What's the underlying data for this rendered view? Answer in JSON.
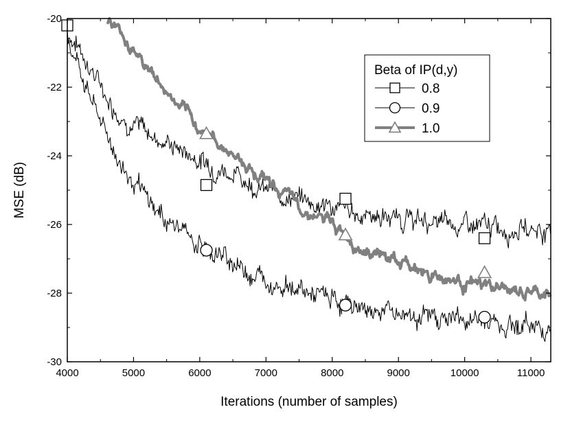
{
  "chart_data": {
    "type": "line",
    "title": "",
    "xlabel": "Iterations (number of samples)",
    "ylabel": "MSE (dB)",
    "xlim": [
      4000,
      11300
    ],
    "ylim": [
      -30,
      -20
    ],
    "x_ticks": [
      4000,
      5000,
      6000,
      7000,
      8000,
      9000,
      10000,
      11000
    ],
    "y_ticks": [
      -30,
      -28,
      -26,
      -24,
      -22,
      -20
    ],
    "grid": false,
    "legend": {
      "title": "Beta of IP(d,y)",
      "placement": "top-right"
    },
    "series": [
      {
        "name": "0.8",
        "color": "#000000",
        "line_style": "thin",
        "marker": "square",
        "points": [
          [
            4000,
            -20.4
          ],
          [
            4200,
            -20.9
          ],
          [
            4400,
            -21.6
          ],
          [
            4600,
            -22.3
          ],
          [
            4800,
            -22.8
          ],
          [
            5000,
            -23.1
          ],
          [
            5200,
            -23.3
          ],
          [
            5400,
            -23.5
          ],
          [
            5600,
            -23.7
          ],
          [
            5800,
            -23.9
          ],
          [
            6000,
            -24.1
          ],
          [
            6200,
            -24.3
          ],
          [
            6400,
            -24.4
          ],
          [
            6600,
            -24.6
          ],
          [
            6800,
            -24.8
          ],
          [
            7000,
            -25.0
          ],
          [
            7200,
            -25.1
          ],
          [
            7400,
            -25.2
          ],
          [
            7600,
            -25.3
          ],
          [
            7800,
            -25.4
          ],
          [
            8000,
            -25.5
          ],
          [
            8200,
            -25.6
          ],
          [
            8400,
            -25.7
          ],
          [
            8600,
            -25.7
          ],
          [
            8800,
            -25.8
          ],
          [
            9000,
            -25.8
          ],
          [
            9200,
            -25.9
          ],
          [
            9400,
            -25.9
          ],
          [
            9600,
            -26.0
          ],
          [
            9800,
            -26.0
          ],
          [
            10000,
            -26.0
          ],
          [
            10200,
            -26.1
          ],
          [
            10400,
            -26.1
          ],
          [
            10600,
            -26.1
          ],
          [
            10800,
            -26.1
          ],
          [
            11000,
            -26.1
          ],
          [
            11300,
            -26.2
          ]
        ],
        "markers": [
          [
            4000,
            -20.2
          ],
          [
            6100,
            -24.85
          ],
          [
            8200,
            -25.25
          ],
          [
            10300,
            -26.4
          ]
        ]
      },
      {
        "name": "0.9",
        "color": "#000000",
        "line_style": "thin",
        "marker": "circle",
        "points": [
          [
            4000,
            -20.5
          ],
          [
            4200,
            -21.5
          ],
          [
            4400,
            -22.5
          ],
          [
            4600,
            -23.4
          ],
          [
            4800,
            -24.2
          ],
          [
            5000,
            -24.8
          ],
          [
            5200,
            -25.3
          ],
          [
            5400,
            -25.7
          ],
          [
            5600,
            -26.0
          ],
          [
            5800,
            -26.3
          ],
          [
            6000,
            -26.6
          ],
          [
            6200,
            -26.8
          ],
          [
            6400,
            -27.0
          ],
          [
            6600,
            -27.2
          ],
          [
            6800,
            -27.4
          ],
          [
            7000,
            -27.6
          ],
          [
            7200,
            -27.7
          ],
          [
            7400,
            -27.8
          ],
          [
            7600,
            -28.0
          ],
          [
            7800,
            -28.1
          ],
          [
            8000,
            -28.2
          ],
          [
            8200,
            -28.3
          ],
          [
            8400,
            -28.4
          ],
          [
            8600,
            -28.5
          ],
          [
            8800,
            -28.5
          ],
          [
            9000,
            -28.6
          ],
          [
            9200,
            -28.6
          ],
          [
            9400,
            -28.7
          ],
          [
            9600,
            -28.7
          ],
          [
            9800,
            -28.7
          ],
          [
            10000,
            -28.8
          ],
          [
            10200,
            -28.8
          ],
          [
            10400,
            -28.8
          ],
          [
            10600,
            -28.9
          ],
          [
            10800,
            -28.9
          ],
          [
            11000,
            -28.9
          ],
          [
            11300,
            -29.0
          ]
        ],
        "markers": [
          [
            6100,
            -26.75
          ],
          [
            8200,
            -28.35
          ],
          [
            10300,
            -28.7
          ]
        ]
      },
      {
        "name": "1.0",
        "color": "#808080",
        "line_style": "thick",
        "marker": "triangle",
        "points": [
          [
            4600,
            -20.0
          ],
          [
            4800,
            -20.4
          ],
          [
            5000,
            -20.9
          ],
          [
            5200,
            -21.4
          ],
          [
            5400,
            -21.9
          ],
          [
            5600,
            -22.4
          ],
          [
            5800,
            -22.8
          ],
          [
            6000,
            -23.2
          ],
          [
            6200,
            -23.5
          ],
          [
            6400,
            -23.8
          ],
          [
            6600,
            -24.1
          ],
          [
            6800,
            -24.4
          ],
          [
            7000,
            -24.7
          ],
          [
            7200,
            -25.0
          ],
          [
            7400,
            -25.3
          ],
          [
            7600,
            -25.6
          ],
          [
            7800,
            -25.8
          ],
          [
            8000,
            -26.0
          ],
          [
            8200,
            -26.3
          ],
          [
            8400,
            -26.6
          ],
          [
            8600,
            -26.8
          ],
          [
            8800,
            -26.9
          ],
          [
            9000,
            -27.1
          ],
          [
            9200,
            -27.2
          ],
          [
            9400,
            -27.4
          ],
          [
            9600,
            -27.5
          ],
          [
            9800,
            -27.6
          ],
          [
            10000,
            -27.7
          ],
          [
            10200,
            -27.8
          ],
          [
            10400,
            -27.8
          ],
          [
            10600,
            -27.9
          ],
          [
            10800,
            -28.0
          ],
          [
            11000,
            -28.0
          ],
          [
            11300,
            -28.1
          ]
        ],
        "markers": [
          [
            6100,
            -23.35
          ],
          [
            8200,
            -26.3
          ],
          [
            10300,
            -27.4
          ]
        ]
      }
    ]
  }
}
